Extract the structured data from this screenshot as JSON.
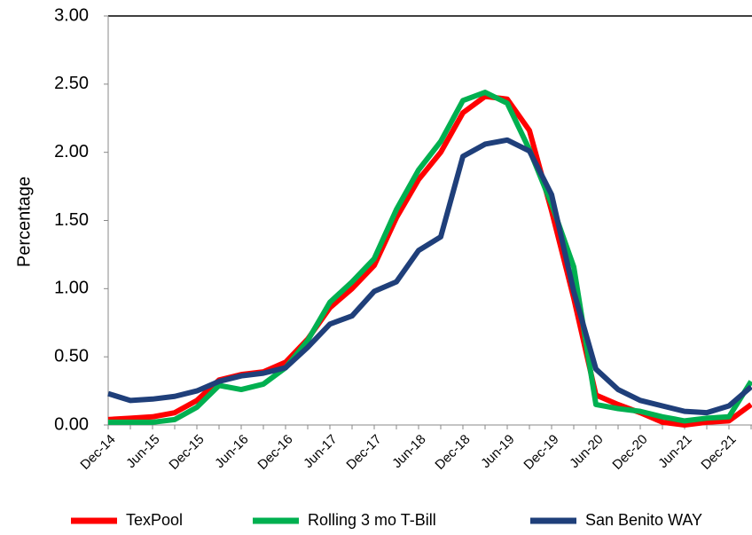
{
  "chart_data": {
    "type": "line",
    "y_label": "Percentage",
    "categories": [
      "Dec-14",
      null,
      "Jun-15",
      null,
      "Dec-15",
      null,
      "Jun-16",
      null,
      "Dec-16",
      null,
      "Jun-17",
      null,
      "Dec-17",
      null,
      "Jun-18",
      null,
      "Dec-18",
      null,
      "Jun-19",
      null,
      "Dec-19",
      null,
      "Jun-20",
      null,
      "Dec-20",
      null,
      "Jun-21",
      null,
      "Dec-21",
      null
    ],
    "series": [
      {
        "name": "TexPool",
        "color": "#ff0000",
        "values": [
          0.04,
          0.05,
          0.06,
          0.09,
          0.18,
          0.33,
          0.37,
          0.39,
          0.46,
          0.63,
          0.86,
          1.0,
          1.17,
          1.52,
          1.8,
          2.0,
          2.29,
          2.41,
          2.39,
          2.16,
          1.57,
          0.93,
          0.22,
          0.15,
          0.09,
          0.02,
          0.0,
          0.02,
          0.03,
          0.15
        ]
      },
      {
        "name": "Rolling 3 mo T-Bill",
        "color": "#00b050",
        "values": [
          0.02,
          0.02,
          0.02,
          0.04,
          0.13,
          0.29,
          0.26,
          0.3,
          0.42,
          0.62,
          0.9,
          1.05,
          1.22,
          1.58,
          1.87,
          2.08,
          2.38,
          2.44,
          2.36,
          2.02,
          1.62,
          1.16,
          0.15,
          0.12,
          0.1,
          0.06,
          0.03,
          0.05,
          0.06,
          0.32
        ]
      },
      {
        "name": "San Benito WAY",
        "color": "#1f3f7a",
        "values": [
          0.23,
          0.18,
          0.19,
          0.21,
          0.25,
          0.32,
          0.36,
          0.38,
          0.42,
          0.57,
          0.74,
          0.8,
          0.98,
          1.05,
          1.28,
          1.38,
          1.97,
          2.06,
          2.09,
          2.01,
          1.69,
          0.98,
          0.41,
          0.26,
          0.18,
          0.14,
          0.1,
          0.09,
          0.14,
          0.28
        ]
      }
    ],
    "ylim": [
      0,
      3
    ],
    "yticks": [
      {
        "value": 0,
        "label": "0.00"
      },
      {
        "value": 0.5,
        "label": "0.50"
      },
      {
        "value": 1,
        "label": "1.00"
      },
      {
        "value": 1.5,
        "label": "1.50"
      },
      {
        "value": 2,
        "label": "2.00"
      },
      {
        "value": 2.5,
        "label": "2.50"
      },
      {
        "value": 3,
        "label": "3.00"
      }
    ],
    "legend": "bottom"
  }
}
